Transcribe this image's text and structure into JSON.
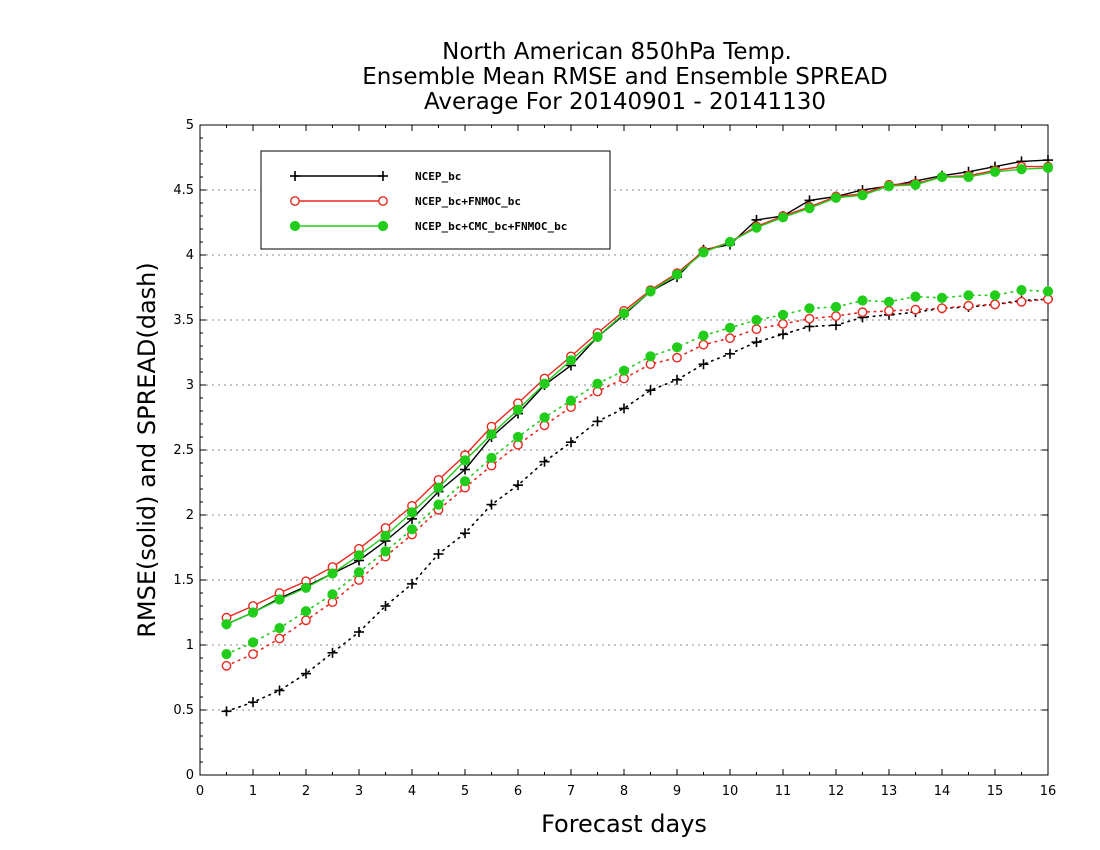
{
  "chart_data": {
    "type": "line",
    "title_lines": [
      "North American 850hPa Temp.",
      "Ensemble Mean RMSE and Ensemble SPREAD",
      "Average For 20140901 - 20141130"
    ],
    "xlabel": "Forecast days",
    "ylabel": "RMSE(solid) and SPREAD(dash)",
    "xlim": [
      0,
      16
    ],
    "ylim": [
      0,
      5
    ],
    "x_ticks": [
      "0",
      "1",
      "2",
      "3",
      "4",
      "5",
      "6",
      "7",
      "8",
      "9",
      "10",
      "11",
      "12",
      "13",
      "14",
      "15",
      "16"
    ],
    "y_ticks": [
      "0",
      "0.5",
      "1",
      "1.5",
      "2",
      "2.5",
      "3",
      "3.5",
      "4",
      "4.5",
      "5"
    ],
    "grid": "horizontal dotted",
    "legend_position": "top-left",
    "x": [
      0.5,
      1,
      1.5,
      2,
      2.5,
      3,
      3.5,
      4,
      4.5,
      5,
      5.5,
      6,
      6.5,
      7,
      7.5,
      8,
      8.5,
      9,
      9.5,
      10,
      10.5,
      11,
      11.5,
      12,
      12.5,
      13,
      13.5,
      14,
      14.5,
      15,
      15.5,
      16
    ],
    "series": [
      {
        "name": "NCEP_bc",
        "color": "#000000",
        "marker": "plus",
        "rmse": [
          1.16,
          1.25,
          1.36,
          1.45,
          1.55,
          1.65,
          1.8,
          1.97,
          2.18,
          2.35,
          2.6,
          2.78,
          3.0,
          3.15,
          3.37,
          3.54,
          3.72,
          3.83,
          4.04,
          4.08,
          4.27,
          4.3,
          4.42,
          4.45,
          4.5,
          4.53,
          4.57,
          4.61,
          4.64,
          4.68,
          4.72,
          4.73
        ],
        "spread": [
          0.49,
          0.56,
          0.65,
          0.78,
          0.94,
          1.1,
          1.3,
          1.47,
          1.7,
          1.86,
          2.08,
          2.23,
          2.41,
          2.56,
          2.72,
          2.82,
          2.96,
          3.04,
          3.16,
          3.24,
          3.33,
          3.39,
          3.45,
          3.46,
          3.52,
          3.54,
          3.56,
          3.59,
          3.6,
          3.62,
          3.65,
          3.66
        ]
      },
      {
        "name": "NCEP_bc+FNMOC_bc",
        "color": "#e8281e",
        "marker": "open-circle",
        "rmse": [
          1.21,
          1.3,
          1.4,
          1.49,
          1.6,
          1.74,
          1.9,
          2.07,
          2.27,
          2.46,
          2.68,
          2.86,
          3.05,
          3.22,
          3.4,
          3.57,
          3.73,
          3.86,
          4.03,
          4.1,
          4.22,
          4.3,
          4.37,
          4.45,
          4.47,
          4.54,
          4.55,
          4.6,
          4.61,
          4.65,
          4.68,
          4.68
        ],
        "spread": [
          0.84,
          0.93,
          1.05,
          1.19,
          1.33,
          1.5,
          1.68,
          1.85,
          2.04,
          2.21,
          2.38,
          2.54,
          2.69,
          2.83,
          2.95,
          3.05,
          3.16,
          3.21,
          3.31,
          3.36,
          3.43,
          3.47,
          3.51,
          3.53,
          3.56,
          3.57,
          3.58,
          3.59,
          3.61,
          3.62,
          3.64,
          3.66
        ]
      },
      {
        "name": "NCEP_bc+CMC_bc+FNMOC_bc",
        "color": "#22cc1b",
        "marker": "filled-circle",
        "rmse": [
          1.16,
          1.25,
          1.35,
          1.44,
          1.55,
          1.69,
          1.84,
          2.02,
          2.21,
          2.42,
          2.62,
          2.81,
          3.01,
          3.19,
          3.37,
          3.55,
          3.72,
          3.85,
          4.02,
          4.1,
          4.21,
          4.29,
          4.36,
          4.44,
          4.46,
          4.53,
          4.54,
          4.6,
          4.6,
          4.64,
          4.66,
          4.67
        ],
        "spread": [
          0.93,
          1.02,
          1.13,
          1.26,
          1.39,
          1.56,
          1.72,
          1.89,
          2.08,
          2.26,
          2.44,
          2.6,
          2.75,
          2.88,
          3.01,
          3.11,
          3.22,
          3.29,
          3.38,
          3.44,
          3.5,
          3.54,
          3.59,
          3.6,
          3.65,
          3.64,
          3.68,
          3.67,
          3.69,
          3.69,
          3.73,
          3.72
        ]
      }
    ]
  }
}
